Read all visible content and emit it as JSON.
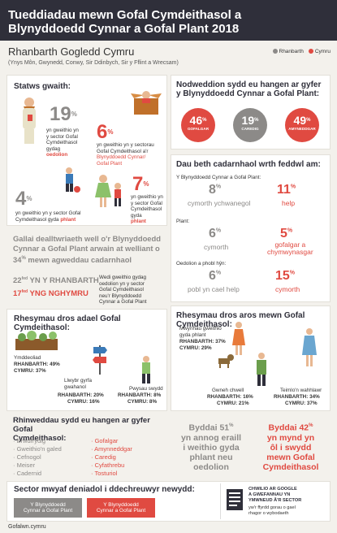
{
  "header": {
    "title_line1": "Tueddiadau mewn Gofal Cymdeithasol a",
    "title_line2": "Blynyddoedd Cynnar a Gofal Plant 2018"
  },
  "region": {
    "title": "Rhanbarth Gogledd Cymru",
    "subtitle": "(Ynys Môn, Gwynedd, Conwy, Sir Ddinbych, Sir y Fflint a Wrecsam)"
  },
  "legend": {
    "region_label": "Rhanbarth",
    "wales_label": "Cymru",
    "region_color": "#8c8a88",
    "wales_color": "#e04a41"
  },
  "status": {
    "title": "Statws gwaith:",
    "s1_value": "19",
    "s1_text_a": "yn gweithio yn",
    "s1_text_b": "y sector Gofal",
    "s1_text_c": "Cymdeithasol",
    "s1_text_d": "gydag",
    "s1_text_hl": "oedolion",
    "s2_value": "6",
    "s2_text_a": "yn gweithio yn y sectorau",
    "s2_text_b": "Gofal Cymdeithasol a'r",
    "s2_text_hl1": "Blynyddoedd Cynnar/",
    "s2_text_hl2": "Gofal Plant",
    "s3_value": "4",
    "s3_text_a": "yn gweithio yn y sector Gofal",
    "s3_text_b": "Cymdeithasol gyda",
    "s3_text_hl": "phlant",
    "s4_value": "7",
    "s4_text_a": "yn gweithio yn",
    "s4_text_b": "y sector Gofal",
    "s4_text_c": "Cymdeithasol gyda",
    "s4_text_hl": "phlant",
    "percent": "%"
  },
  "attract": {
    "text1": "Gallai dealltwriaeth well o'r Blynyddoedd",
    "text2": "Cynnar a Gofal Plant arwain at welliant o",
    "text3_value": "34",
    "text3_rest": "mewn agweddau cadarnhaol"
  },
  "rank": {
    "region_value": "22",
    "region_text": "YN Y RHANBARTH",
    "wales_value": "17",
    "wales_text": "YNG NGHYMRU",
    "suffix": "fed",
    "note1": "Wedi gweithio gydag",
    "note2": "oedolion yn y sector",
    "note3": "Gofal Cymdeithasol",
    "note4": "neu'r Blynyddoedd",
    "note5": "Cynnar a Gofal Plant"
  },
  "leaving": {
    "title": "Rhesymau dros adael Gofal Cymdeithasol:",
    "r1_label": "Ymddeoliad",
    "r1_region": "RHANBARTH: 49",
    "r1_wales": "CYMRU: 37",
    "r2_label_a": "Llwybr gyrfa",
    "r2_label_b": "gwahanol",
    "r2_region": "RHANBARTH: 20",
    "r2_wales": "CYMRU: 16",
    "r3_label": "Pwysau swydd",
    "r3_region": "RHANBARTH: 8",
    "r3_wales": "CYMRU: 8",
    "percent": "%"
  },
  "needs": {
    "title_a": "Rhinweddau sydd eu hangen ar gyfer Gofal",
    "title_b": "Cymdeithasol:",
    "left": [
      "Brwdfrydig",
      "Gweithio'n galed",
      "Cefnogol",
      "Meiser",
      "Cadernid"
    ],
    "right": [
      "Gofalgar",
      "Amynneddgar",
      "Caredig",
      "Cyfathrebu",
      "Tosturiol"
    ]
  },
  "sector": {
    "title": "Sector mwyaf deniadol i ddechreuwyr newydd:",
    "btn1_a": "Y Blynyddoedd",
    "btn1_b": "Cynnar a Gofal Plant",
    "btn2_a": "Y Blynyddoedd",
    "btn2_b": "Cynnar a Gofal Plant",
    "google_a": "CHWILIO AR GOOGLE",
    "google_b": "A GWEFANNAU YN",
    "google_c": "YMWNEUD Â'R SECTOR",
    "google_d": "yw'r ffyrdd gorau o gael",
    "google_e": "rhagor o wybodaeth"
  },
  "site": {
    "url": "Gofalwn.cymru"
  },
  "qualities": {
    "title_a": "Nodweddion sydd eu hangen ar gyfer",
    "title_b": "y Blynyddoedd Cynnar a Gofal Plant:",
    "c1_value": "46",
    "c1_label": "GOFALGAR",
    "c1_color": "#e04a41",
    "c2_value": "19",
    "c2_label": "CAREDIG",
    "c2_color": "#8c8a88",
    "c3_value": "49",
    "c3_label": "AMYNEDDGAR",
    "c3_color": "#e04a41",
    "percent": "%"
  },
  "views": {
    "title": "Dau beth cadarnhaol wrth feddwl am:",
    "g1_label": "Y Blynyddoedd Cynnar a Gofal Plant:",
    "g1_a_value": "8",
    "g1_a_text": "cymorth ychwanegol",
    "g1_b_value": "11",
    "g1_b_text": "help",
    "g2_label": "Plant:",
    "g2_a_value": "6",
    "g2_a_text": "cymorth",
    "g2_b_value": "5",
    "g2_b_text_a": "gofalgar a",
    "g2_b_text_b": "chymwynasgar",
    "g3_label": "Oedolion a phobl hŷn:",
    "g3_a_value": "6",
    "g3_a_text": "pobl yn cael help",
    "g3_b_value": "15",
    "g3_b_text": "cymorth",
    "percent": "%"
  },
  "staying": {
    "title": "Rhesymau dros aros mewn Gofal Cymdeithasol:",
    "r1_label_a": "Mwynhau gweithio",
    "r1_label_b": "gyda phlant",
    "r1_region": "RHANBARTH: 37",
    "r1_wales": "CYMRU: 29",
    "r2_label": "Gwneh chwell",
    "r2_region": "RHANBARTH: 16",
    "r2_wales": "CYMRU: 21",
    "r3_label": "Teimlo'n wahhlawr",
    "r3_region": "RHANBARTH: 34",
    "r3_wales": "CYMRU: 37",
    "percent": "%"
  },
  "would": {
    "left_a": "Byddai",
    "left_value": "51",
    "left_b": "yn annog eraill",
    "left_c": "i weithio gyda",
    "left_d": "phlant neu",
    "left_e": "oedolion",
    "right_a": "Byddai",
    "right_value": "42",
    "right_b": "yn mynd yn",
    "right_c": "ôl i swydd",
    "right_d": "mewn Gofal",
    "right_e": "Cymdeithasol",
    "percent": "%"
  }
}
